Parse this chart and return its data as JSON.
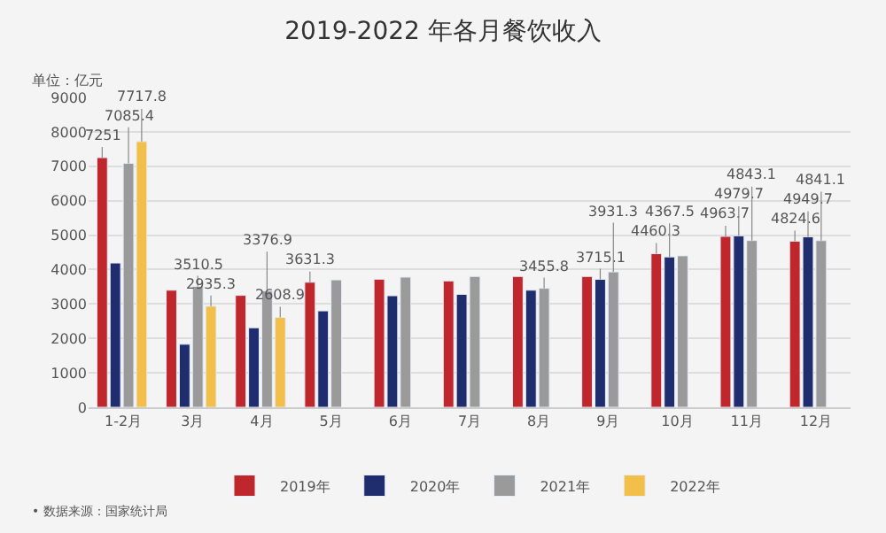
{
  "chart_data": {
    "type": "bar",
    "title": "2019-2022 年各月餐饮收入",
    "annotations": [
      "单位：亿元",
      "• 数据来源：国家统计局"
    ],
    "categories": [
      "1-2月",
      "3月",
      "4月",
      "5月",
      "6月",
      "7月",
      "8月",
      "9月",
      "10月",
      "11月",
      "12月"
    ],
    "series": [
      {
        "name": "2019年",
        "color": "#c0272d",
        "values": [
          7251,
          3400,
          3250,
          3631.3,
          3720,
          3670,
          3800,
          3800,
          4460.3,
          4963.7,
          4824.6
        ],
        "value_labels": [
          "7251",
          null,
          null,
          "3631.3",
          null,
          null,
          null,
          null,
          "4460.3",
          "4963.7",
          "4824.6"
        ]
      },
      {
        "name": "2020年",
        "color": "#1f2d6e",
        "values": [
          4190,
          1830,
          2310,
          2800,
          3240,
          3280,
          3400,
          3715.1,
          4367.5,
          4979.7,
          4949.7
        ],
        "value_labels": [
          null,
          null,
          null,
          null,
          null,
          null,
          null,
          "3715.1",
          "4367.5",
          "4979.7",
          "4949.7"
        ]
      },
      {
        "name": "2021年",
        "color": "#9a9a9a",
        "values": [
          7085.4,
          3510.5,
          3376.9,
          3700,
          3780,
          3800,
          3455.8,
          3931.3,
          4400,
          4843.1,
          4841.1
        ],
        "value_labels": [
          "7085.4",
          "3510.5",
          "3376.9",
          null,
          null,
          null,
          "3455.8",
          "3931.3",
          null,
          "4843.1",
          "4841.1"
        ]
      },
      {
        "name": "2022年",
        "color": "#f2c04a",
        "values": [
          7717.8,
          2935.3,
          2608.9,
          null,
          null,
          null,
          null,
          null,
          null,
          null,
          null
        ],
        "value_labels": [
          "7717.8",
          "2935.3",
          "2608.9",
          null,
          null,
          null,
          null,
          null,
          null,
          null,
          null
        ]
      }
    ],
    "ylim": [
      0,
      9000
    ],
    "yticks": [
      0,
      1000,
      2000,
      3000,
      4000,
      5000,
      6000,
      7000,
      8000,
      9000
    ],
    "grid": "y",
    "legend": "bottom"
  }
}
